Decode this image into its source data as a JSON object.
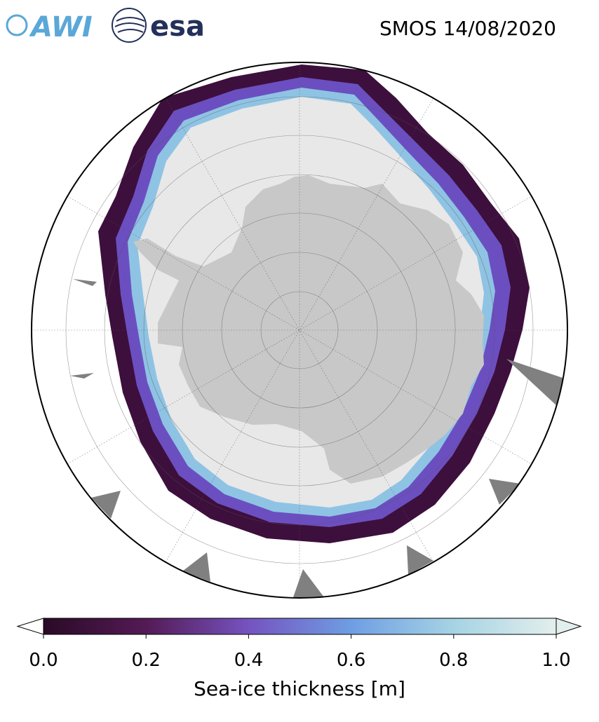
{
  "header": {
    "logos": [
      "AWI",
      "esa"
    ],
    "title": "SMOS 14/08/2020"
  },
  "colorbar": {
    "label": "Sea-ice thickness [m]",
    "lim": [
      0,
      1
    ],
    "ticks": [
      {
        "value": 0,
        "label": "0.0"
      },
      {
        "value": 0.2,
        "label": "0.2"
      },
      {
        "value": 0.4,
        "label": "0.4"
      },
      {
        "value": 0.6,
        "label": "0.6"
      },
      {
        "value": 0.8,
        "label": "0.8"
      },
      {
        "value": 1,
        "label": "1.0"
      }
    ],
    "colors": [
      "#2a0a26",
      "#541a55",
      "#7553c0",
      "#6e9ee3",
      "#a6d3e4",
      "#e3efec"
    ]
  }
}
